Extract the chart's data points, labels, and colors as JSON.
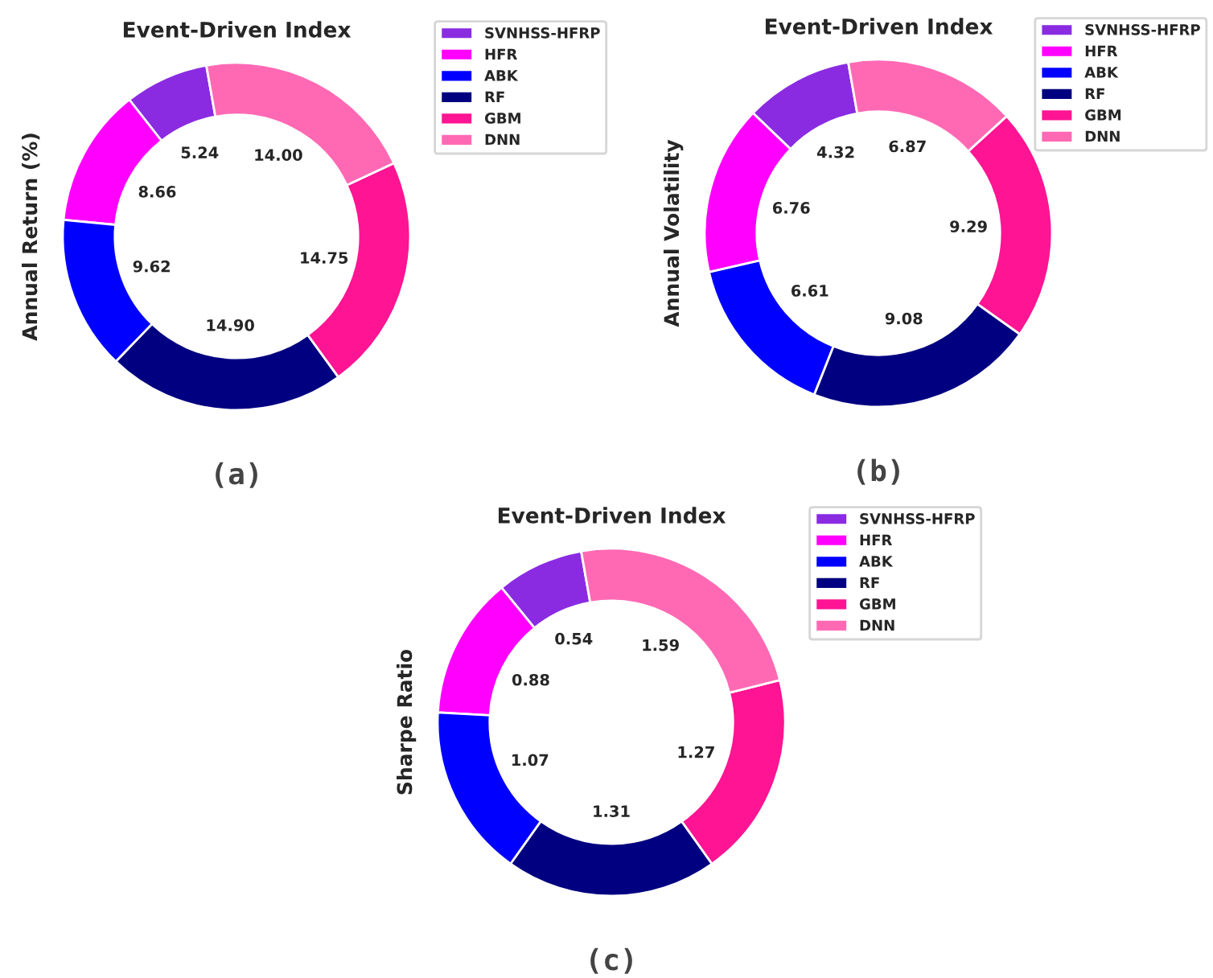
{
  "chart_data": [
    {
      "type": "donut",
      "title": "Event-Driven Index",
      "ylabel": "Annual Return (%)",
      "categories": [
        "SVNHSS-HFRP",
        "HFR",
        "ABK",
        "RF",
        "GBM",
        "DNN"
      ],
      "values": [
        5.24,
        8.66,
        9.62,
        14.9,
        14.75,
        14.0
      ],
      "value_labels": [
        "5.24",
        "8.66",
        "9.62",
        "14.90",
        "14.75",
        "14.00"
      ],
      "colors": [
        "#8a2be2",
        "#ff00ff",
        "#0000ff",
        "#000080",
        "#ff1493",
        "#ff69b4"
      ],
      "legend": "top right",
      "annotations": [
        "(a)"
      ]
    },
    {
      "type": "donut",
      "title": "Event-Driven Index",
      "ylabel": "Annual Volatility",
      "categories": [
        "SVNHSS-HFRP",
        "HFR",
        "ABK",
        "RF",
        "GBM",
        "DNN"
      ],
      "values": [
        4.32,
        6.76,
        6.61,
        9.08,
        9.29,
        6.87
      ],
      "value_labels": [
        "4.32",
        "6.76",
        "6.61",
        "9.08",
        "9.29",
        "6.87"
      ],
      "colors": [
        "#8a2be2",
        "#ff00ff",
        "#0000ff",
        "#000080",
        "#ff1493",
        "#ff69b4"
      ],
      "legend": "top right",
      "annotations": [
        "(b)"
      ]
    },
    {
      "type": "donut",
      "title": "Event-Driven Index",
      "ylabel": "Sharpe Ratio",
      "categories": [
        "SVNHSS-HFRP",
        "HFR",
        "ABK",
        "RF",
        "GBM",
        "DNN"
      ],
      "values": [
        0.54,
        0.88,
        1.07,
        1.31,
        1.27,
        1.59
      ],
      "value_labels": [
        "0.54",
        "0.88",
        "1.07",
        "1.31",
        "1.27",
        "1.59"
      ],
      "colors": [
        "#8a2be2",
        "#ff00ff",
        "#0000ff",
        "#000080",
        "#ff1493",
        "#ff69b4"
      ],
      "legend": "top right",
      "annotations": [
        "(c)"
      ]
    }
  ]
}
